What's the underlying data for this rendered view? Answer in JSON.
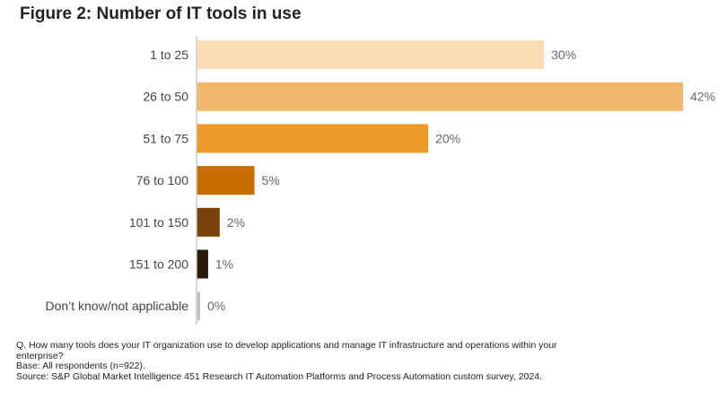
{
  "chart_data": {
    "type": "bar",
    "orientation": "horizontal",
    "title": "Figure 2: Number of IT tools in use",
    "categories": [
      "1 to 25",
      "26 to 50",
      "51 to 75",
      "76 to 100",
      "101 to 150",
      "151 to 200",
      "Don’t know/not applicable"
    ],
    "values": [
      30,
      42,
      20,
      5,
      2,
      1,
      0
    ],
    "labels": [
      "30%",
      "42%",
      "20%",
      "5%",
      "2%",
      "1%",
      "0%"
    ],
    "colors": [
      "#F9DBB5",
      "#F2B96E",
      "#EE9A2A",
      "#C86E00",
      "#794208",
      "#2A1A0B",
      "#C4C4C4"
    ],
    "xlim": [
      0,
      42
    ],
    "grid": false,
    "unit": "%"
  },
  "footnotes": {
    "question": "Q. How many tools does your IT organization use to develop applications and manage IT infrastructure and operations within your enterprise?",
    "base": "Base: All respondents (n=922).",
    "source": "Source: S&P Global Market Intelligence 451 Research IT Automation Platforms and Process Automation custom survey, 2024."
  }
}
